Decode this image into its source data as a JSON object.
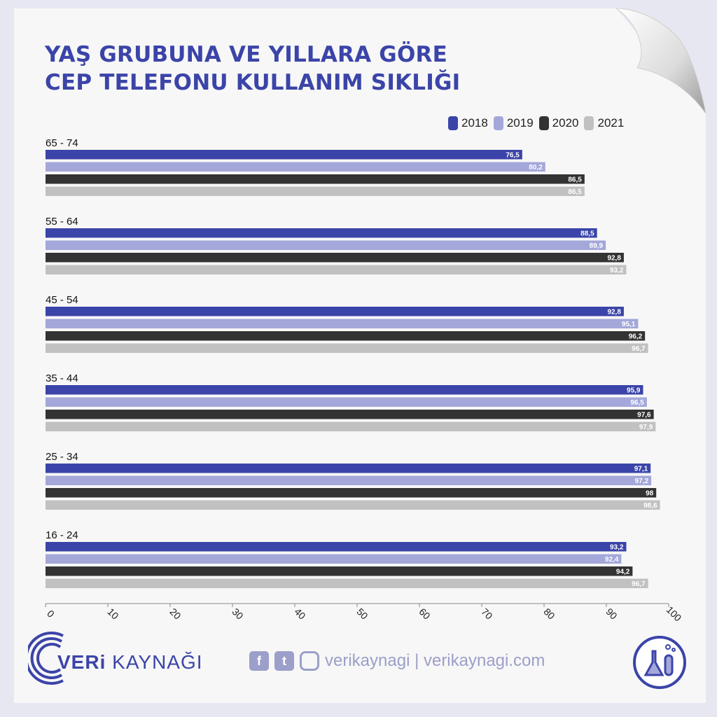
{
  "title": {
    "line1": "YAŞ GRUBUNA VE YILLARA GÖRE",
    "line2": "CEP TELEFONU KULLANIM SIKLIĞI"
  },
  "colors": {
    "2018": "#3b44a8",
    "2019": "#a3a7d9",
    "2020": "#333333",
    "2021": "#c1c1c1",
    "title": "#3b44a8"
  },
  "chart_data": {
    "type": "bar",
    "orientation": "horizontal",
    "categories": [
      "65 - 74",
      "55 - 64",
      "45 - 54",
      "35 - 44",
      "25 - 34",
      "16 - 24"
    ],
    "series": [
      {
        "name": "2018",
        "values": [
          76.5,
          88.5,
          92.8,
          95.9,
          97.1,
          93.2
        ],
        "labels": [
          "76,5",
          "88,5",
          "92,8",
          "95,9",
          "97,1",
          "93,2"
        ]
      },
      {
        "name": "2019",
        "values": [
          80.2,
          89.9,
          95.1,
          96.5,
          97.2,
          92.4
        ],
        "labels": [
          "80,2",
          "89,9",
          "95,1",
          "96,5",
          "97,2",
          "92,4"
        ]
      },
      {
        "name": "2020",
        "values": [
          86.5,
          92.8,
          96.2,
          97.6,
          98,
          94.2
        ],
        "labels": [
          "86,5",
          "92,8",
          "96,2",
          "97,6",
          "98",
          "94,2"
        ]
      },
      {
        "name": "2021",
        "values": [
          86.5,
          93.2,
          96.7,
          97.9,
          98.6,
          96.7
        ],
        "labels": [
          "86,5",
          "93,2",
          "96,7",
          "97,9",
          "98,6",
          "96,7"
        ]
      }
    ],
    "xlim": [
      0,
      100
    ],
    "xticks": [
      "0",
      "10",
      "20",
      "30",
      "40",
      "50",
      "60",
      "70",
      "80",
      "90",
      "100"
    ],
    "legend_position": "top-right",
    "grid": false
  },
  "footer": {
    "brand_bold": "VERi",
    "brand_light": "KAYNAĞI",
    "social_text": "verikaynagi | verikaynagi.com",
    "icons": [
      "facebook-icon",
      "twitter-icon",
      "instagram-icon",
      "lab-flask-icon"
    ]
  }
}
